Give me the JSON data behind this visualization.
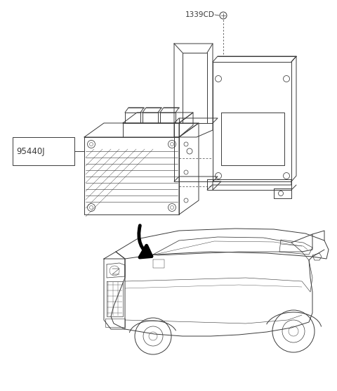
{
  "bg_color": "#ffffff",
  "label_1339CD": "1339CD",
  "label_95440J": "95440J",
  "fig_width": 4.8,
  "fig_height": 5.56,
  "dpi": 100,
  "line_color": "#3a3a3a",
  "line_width": 0.7
}
